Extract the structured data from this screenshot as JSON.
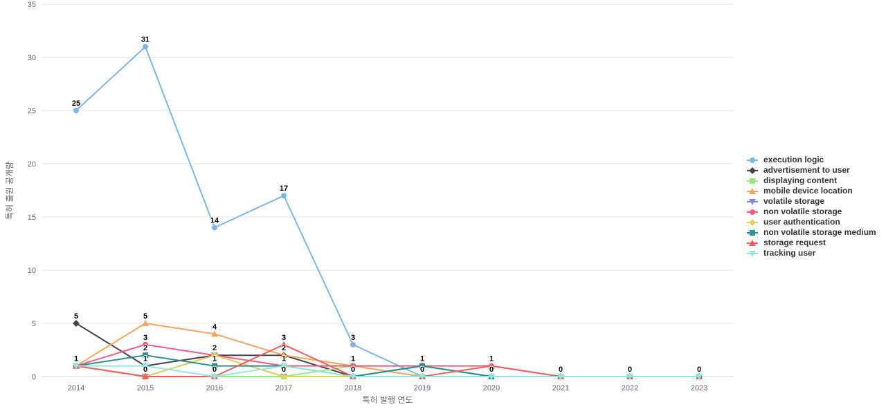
{
  "chart_data": {
    "type": "line",
    "title": "",
    "xlabel": "특허 발행 연도",
    "ylabel": "특허 출원 공개량",
    "categories": [
      "2014",
      "2015",
      "2016",
      "2017",
      "2018",
      "2019",
      "2020",
      "2021",
      "2022",
      "2023"
    ],
    "ylim": [
      0,
      35
    ],
    "yticks": [
      0,
      5,
      10,
      15,
      20,
      25,
      30,
      35
    ],
    "grid": true,
    "legend_position": "right",
    "grid_color": "#e6e6e6",
    "axis_line_color": "#ccd6eb",
    "series": [
      {
        "name": "execution logic",
        "color": "#7cb5ec",
        "marker": "circle",
        "values": [
          25,
          31,
          14,
          17,
          3,
          0,
          0,
          0,
          0,
          0
        ]
      },
      {
        "name": "advertisement to user",
        "color": "#434348",
        "marker": "diamond",
        "values": [
          5,
          1,
          2,
          2,
          0,
          1,
          0,
          0,
          0,
          0
        ]
      },
      {
        "name": "displaying content",
        "color": "#90ed7d",
        "marker": "square",
        "values": [
          1,
          0,
          0,
          0,
          1,
          0,
          0,
          0,
          0,
          0
        ]
      },
      {
        "name": "mobile device location",
        "color": "#f7a35c",
        "marker": "triangle",
        "values": [
          1,
          5,
          4,
          2,
          1,
          0,
          0,
          0,
          0,
          0
        ]
      },
      {
        "name": "volatile storage",
        "color": "#8085e9",
        "marker": "triangle-down",
        "values": [
          1,
          0,
          2,
          0,
          0,
          0,
          0,
          0,
          0,
          0
        ]
      },
      {
        "name": "non volatile storage",
        "color": "#f15c80",
        "marker": "circle",
        "values": [
          1,
          3,
          2,
          1,
          1,
          1,
          1,
          0,
          0,
          0
        ]
      },
      {
        "name": "user authentication",
        "color": "#e4d354",
        "marker": "diamond",
        "values": [
          1,
          0,
          2,
          0,
          0,
          0,
          0,
          0,
          0,
          0
        ]
      },
      {
        "name": "non volatile storage medium",
        "color": "#2b908f",
        "marker": "square",
        "values": [
          1,
          2,
          1,
          1,
          0,
          1,
          0,
          0,
          0,
          0
        ]
      },
      {
        "name": "storage request",
        "color": "#f45b5b",
        "marker": "triangle",
        "values": [
          1,
          0,
          0,
          3,
          0,
          0,
          1,
          0,
          0,
          0
        ]
      },
      {
        "name": "tracking user",
        "color": "#91e8e1",
        "marker": "triangle-down",
        "values": [
          1,
          1,
          0,
          1,
          0,
          0,
          0,
          0,
          0,
          0
        ]
      }
    ]
  }
}
